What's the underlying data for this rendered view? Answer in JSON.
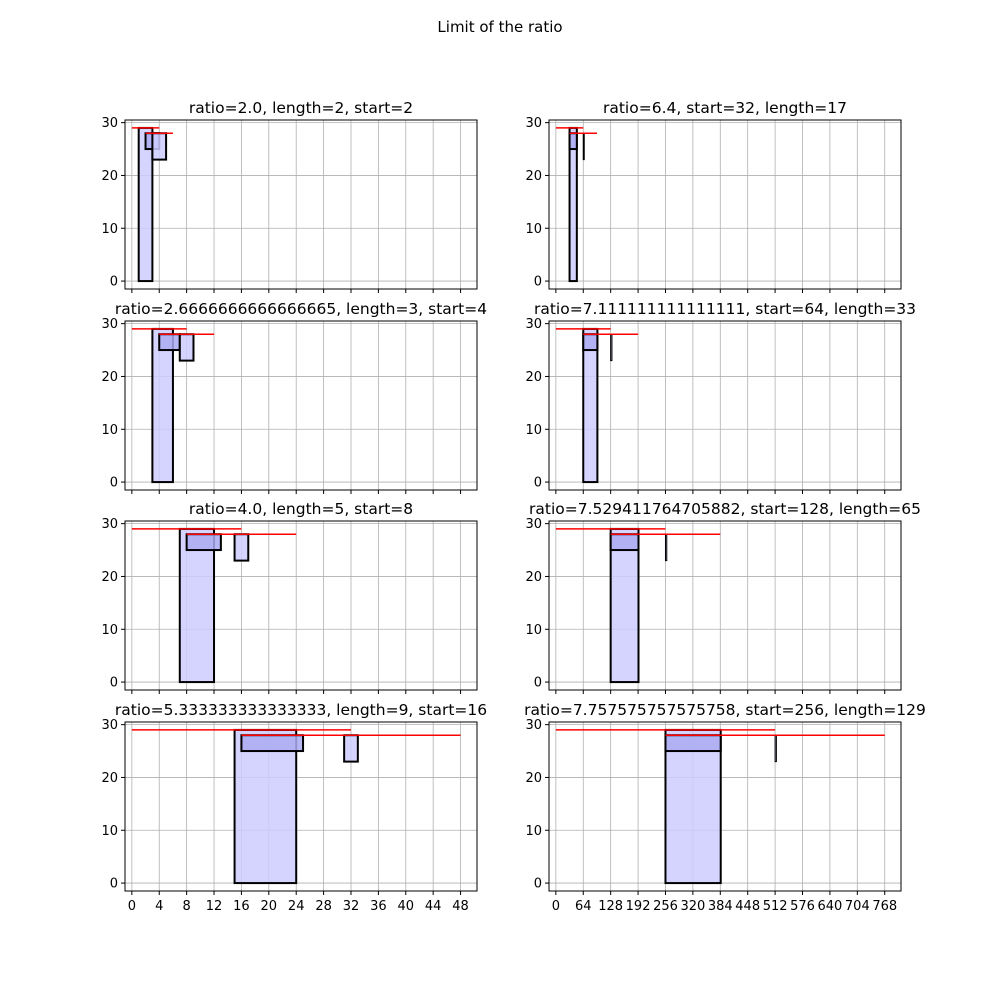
{
  "figure": {
    "title": "Limit of the ratio"
  },
  "colors": {
    "fill": "#ccccff",
    "fill_top": "#aaaaf2",
    "edge": "#000000",
    "limit_line": "#ff0000",
    "grid": "#b0b0b0"
  },
  "chart_data": [
    {
      "type": "bar",
      "title": "ratio=2.0, length=2, start=2",
      "column": "left",
      "xlim": [
        -1,
        50.4
      ],
      "ylim": [
        -1.5,
        30.5
      ],
      "xticks": [
        0,
        4,
        8,
        12,
        16,
        20,
        24,
        28,
        32,
        36,
        40,
        44,
        48
      ],
      "yticks": [
        0,
        10,
        20,
        30
      ],
      "show_xtick_labels": false,
      "bars": [
        {
          "x0": 1.0,
          "x1": 3.0,
          "y0": 0,
          "y1": 29.0,
          "edge": "thick"
        },
        {
          "x0": 2.0,
          "x1": 4.0,
          "y0": 25.0,
          "y1": 28.0,
          "edge": "thick"
        },
        {
          "x0": 3.0,
          "x1": 5.0,
          "y0": 23.0,
          "y1": 28.0,
          "edge": "thick"
        }
      ],
      "hlines": [
        {
          "y": 29.0,
          "x0": 0,
          "x1": 4
        },
        {
          "y": 28.0,
          "x0": 2,
          "x1": 6
        }
      ]
    },
    {
      "type": "bar",
      "title": "ratio=6.4, start=32, length=17",
      "column": "right",
      "xlim": [
        -16,
        806
      ],
      "ylim": [
        -1.5,
        30.5
      ],
      "xticks": [
        0,
        64,
        128,
        192,
        256,
        320,
        384,
        448,
        512,
        576,
        640,
        704,
        768
      ],
      "yticks": [
        0,
        10,
        20,
        30
      ],
      "show_xtick_labels": false,
      "bars": [
        {
          "x0": 32,
          "x1": 49,
          "y0": 0,
          "y1": 29.0,
          "edge": "thick"
        },
        {
          "x0": 32,
          "x1": 49,
          "y0": 25.0,
          "y1": 28.0,
          "edge": "thick"
        },
        {
          "x0": 64,
          "x1": 66,
          "y0": 23.0,
          "y1": 28.0,
          "edge": "thin"
        }
      ],
      "hlines": [
        {
          "y": 29.0,
          "x0": 0,
          "x1": 64
        },
        {
          "y": 28.0,
          "x0": 32,
          "x1": 96
        }
      ]
    },
    {
      "type": "bar",
      "title": "ratio=2.6666666666666665, length=3, start=4",
      "column": "left",
      "xlim": [
        -1,
        50.4
      ],
      "ylim": [
        -1.5,
        30.5
      ],
      "xticks": [
        0,
        4,
        8,
        12,
        16,
        20,
        24,
        28,
        32,
        36,
        40,
        44,
        48
      ],
      "yticks": [
        0,
        10,
        20,
        30
      ],
      "show_xtick_labels": false,
      "bars": [
        {
          "x0": 3.0,
          "x1": 6.0,
          "y0": 0,
          "y1": 29.0,
          "edge": "thick"
        },
        {
          "x0": 4.0,
          "x1": 7.0,
          "y0": 25.0,
          "y1": 28.0,
          "edge": "thick"
        },
        {
          "x0": 7.0,
          "x1": 9.0,
          "y0": 23.0,
          "y1": 28.0,
          "edge": "thick"
        }
      ],
      "hlines": [
        {
          "y": 29.0,
          "x0": 0,
          "x1": 8
        },
        {
          "y": 28.0,
          "x0": 4,
          "x1": 12
        }
      ]
    },
    {
      "type": "bar",
      "title": "ratio=7.111111111111111, start=64, length=33",
      "column": "right",
      "xlim": [
        -16,
        806
      ],
      "ylim": [
        -1.5,
        30.5
      ],
      "xticks": [
        0,
        64,
        128,
        192,
        256,
        320,
        384,
        448,
        512,
        576,
        640,
        704,
        768
      ],
      "yticks": [
        0,
        10,
        20,
        30
      ],
      "show_xtick_labels": false,
      "bars": [
        {
          "x0": 64,
          "x1": 97,
          "y0": 0,
          "y1": 29.0,
          "edge": "thick"
        },
        {
          "x0": 64,
          "x1": 97,
          "y0": 25.0,
          "y1": 28.0,
          "edge": "thick"
        },
        {
          "x0": 128,
          "x1": 131,
          "y0": 23.0,
          "y1": 28.0,
          "edge": "thin"
        }
      ],
      "hlines": [
        {
          "y": 29.0,
          "x0": 0,
          "x1": 128
        },
        {
          "y": 28.0,
          "x0": 64,
          "x1": 192
        }
      ]
    },
    {
      "type": "bar",
      "title": "ratio=4.0, length=5, start=8",
      "column": "left",
      "xlim": [
        -1,
        50.4
      ],
      "ylim": [
        -1.5,
        30.5
      ],
      "xticks": [
        0,
        4,
        8,
        12,
        16,
        20,
        24,
        28,
        32,
        36,
        40,
        44,
        48
      ],
      "yticks": [
        0,
        10,
        20,
        30
      ],
      "show_xtick_labels": false,
      "bars": [
        {
          "x0": 7.0,
          "x1": 12.0,
          "y0": 0,
          "y1": 29.0,
          "edge": "thick"
        },
        {
          "x0": 8.0,
          "x1": 13.0,
          "y0": 25.0,
          "y1": 28.0,
          "edge": "thick"
        },
        {
          "x0": 15.0,
          "x1": 17.0,
          "y0": 23.0,
          "y1": 28.0,
          "edge": "thick"
        }
      ],
      "hlines": [
        {
          "y": 29.0,
          "x0": 0,
          "x1": 16
        },
        {
          "y": 28.0,
          "x0": 8,
          "x1": 24
        }
      ]
    },
    {
      "type": "bar",
      "title": "ratio=7.529411764705882, start=128, length=65",
      "column": "right",
      "xlim": [
        -16,
        806
      ],
      "ylim": [
        -1.5,
        30.5
      ],
      "xticks": [
        0,
        64,
        128,
        192,
        256,
        320,
        384,
        448,
        512,
        576,
        640,
        704,
        768
      ],
      "yticks": [
        0,
        10,
        20,
        30
      ],
      "show_xtick_labels": false,
      "bars": [
        {
          "x0": 128,
          "x1": 193,
          "y0": 0,
          "y1": 29.0,
          "edge": "thick"
        },
        {
          "x0": 128,
          "x1": 193,
          "y0": 25.0,
          "y1": 28.0,
          "edge": "thick"
        },
        {
          "x0": 256,
          "x1": 259,
          "y0": 23.0,
          "y1": 28.0,
          "edge": "thin"
        }
      ],
      "hlines": [
        {
          "y": 29.0,
          "x0": 0,
          "x1": 256
        },
        {
          "y": 28.0,
          "x0": 128,
          "x1": 384
        }
      ]
    },
    {
      "type": "bar",
      "title": "ratio=5.333333333333333, length=9, start=16",
      "column": "left",
      "xlim": [
        -1,
        50.4
      ],
      "ylim": [
        -1.5,
        30.5
      ],
      "xticks": [
        0,
        4,
        8,
        12,
        16,
        20,
        24,
        28,
        32,
        36,
        40,
        44,
        48
      ],
      "yticks": [
        0,
        10,
        20,
        30
      ],
      "show_xtick_labels": true,
      "bars": [
        {
          "x0": 15.0,
          "x1": 24.0,
          "y0": 0,
          "y1": 29.0,
          "edge": "thick"
        },
        {
          "x0": 16.0,
          "x1": 25.0,
          "y0": 25.0,
          "y1": 28.0,
          "edge": "thick"
        },
        {
          "x0": 31.0,
          "x1": 33.0,
          "y0": 23.0,
          "y1": 28.0,
          "edge": "thick"
        }
      ],
      "hlines": [
        {
          "y": 29.0,
          "x0": 0,
          "x1": 32
        },
        {
          "y": 28.0,
          "x0": 16,
          "x1": 48
        }
      ]
    },
    {
      "type": "bar",
      "title": "ratio=7.757575757575758, start=256, length=129",
      "column": "right",
      "xlim": [
        -16,
        806
      ],
      "ylim": [
        -1.5,
        30.5
      ],
      "xticks": [
        0,
        64,
        128,
        192,
        256,
        320,
        384,
        448,
        512,
        576,
        640,
        704,
        768
      ],
      "yticks": [
        0,
        10,
        20,
        30
      ],
      "show_xtick_labels": true,
      "bars": [
        {
          "x0": 256,
          "x1": 385,
          "y0": 0,
          "y1": 29.0,
          "edge": "thick"
        },
        {
          "x0": 256,
          "x1": 385,
          "y0": 25.0,
          "y1": 28.0,
          "edge": "thick"
        },
        {
          "x0": 512,
          "x1": 515,
          "y0": 23.0,
          "y1": 28.0,
          "edge": "thin"
        }
      ],
      "hlines": [
        {
          "y": 29.0,
          "x0": 0,
          "x1": 512
        },
        {
          "y": 28.0,
          "x0": 256,
          "x1": 768
        }
      ]
    }
  ]
}
